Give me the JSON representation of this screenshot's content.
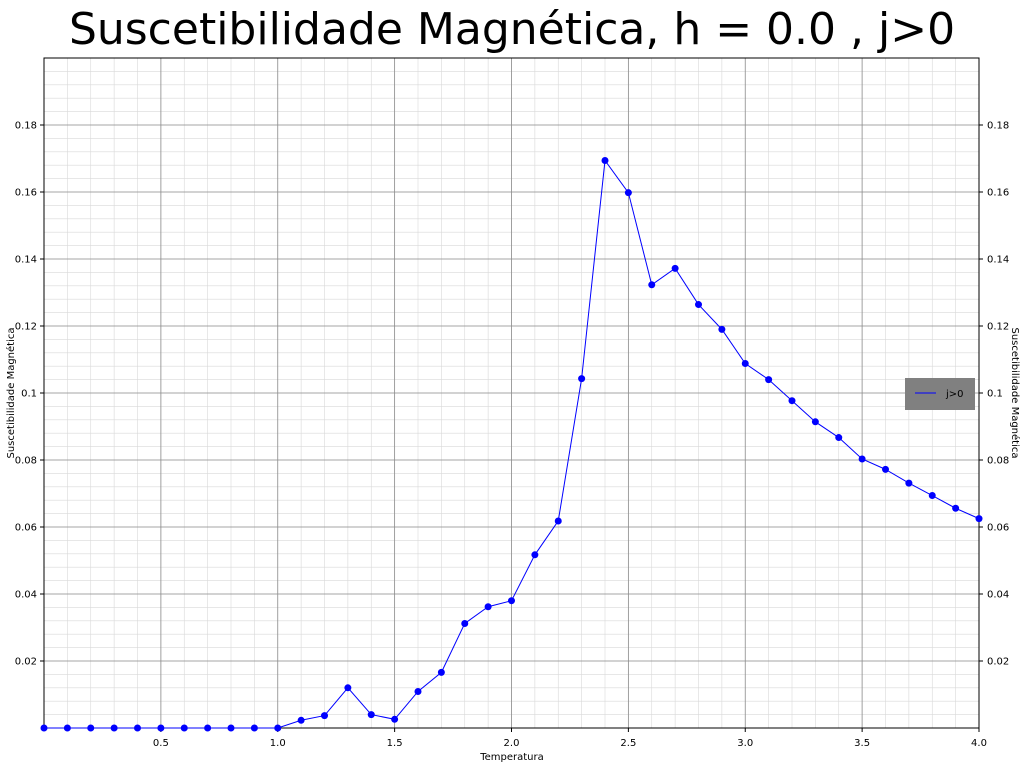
{
  "chart_data": {
    "type": "line",
    "title": "Suscetibilidade Magnética, h = 0.0 , j>0",
    "xlabel": "Temperatura",
    "ylabel": "Suscetibilidade Magnética",
    "ylabel_right": "Suscetibilidade Magnética",
    "xlim": [
      0.0,
      4.0
    ],
    "ylim": [
      0.0,
      0.2
    ],
    "grid": "major and minor",
    "legend_position": "right",
    "x_ticks": [
      "0.5",
      "1.0",
      "1.5",
      "2.0",
      "2.5",
      "3.0",
      "3.5",
      "4.0"
    ],
    "y_ticks": [
      "0.02",
      "0.04",
      "0.06",
      "0.08",
      "0.1",
      "0.12",
      "0.14",
      "0.16",
      "0.18"
    ],
    "x": [
      0.0,
      0.1,
      0.2,
      0.3,
      0.4,
      0.5,
      0.6,
      0.7,
      0.8,
      0.9,
      1.0,
      1.1,
      1.2,
      1.3,
      1.4,
      1.5,
      1.6,
      1.7,
      1.8,
      1.9,
      2.0,
      2.1,
      2.2,
      2.3,
      2.4,
      2.5,
      2.6,
      2.7,
      2.8,
      2.9,
      3.0,
      3.1,
      3.2,
      3.3,
      3.4,
      3.5,
      3.6,
      3.7,
      3.8,
      3.9,
      4.0
    ],
    "series": [
      {
        "name": "j>0",
        "color": "#0000ff",
        "values": [
          0.0,
          0.0,
          0.0,
          0.0,
          0.0,
          0.0,
          0.0,
          0.0,
          0.0,
          0.0,
          0.0,
          0.0023,
          0.0037,
          0.012,
          0.004,
          0.0026,
          0.0109,
          0.0166,
          0.0312,
          0.0362,
          0.038,
          0.0517,
          0.0618,
          0.1043,
          0.1694,
          0.1598,
          0.1323,
          0.1372,
          0.1264,
          0.119,
          0.1088,
          0.104,
          0.0977,
          0.0914,
          0.0867,
          0.0803,
          0.0772,
          0.0731,
          0.0694,
          0.0656,
          0.0625
        ]
      }
    ]
  }
}
